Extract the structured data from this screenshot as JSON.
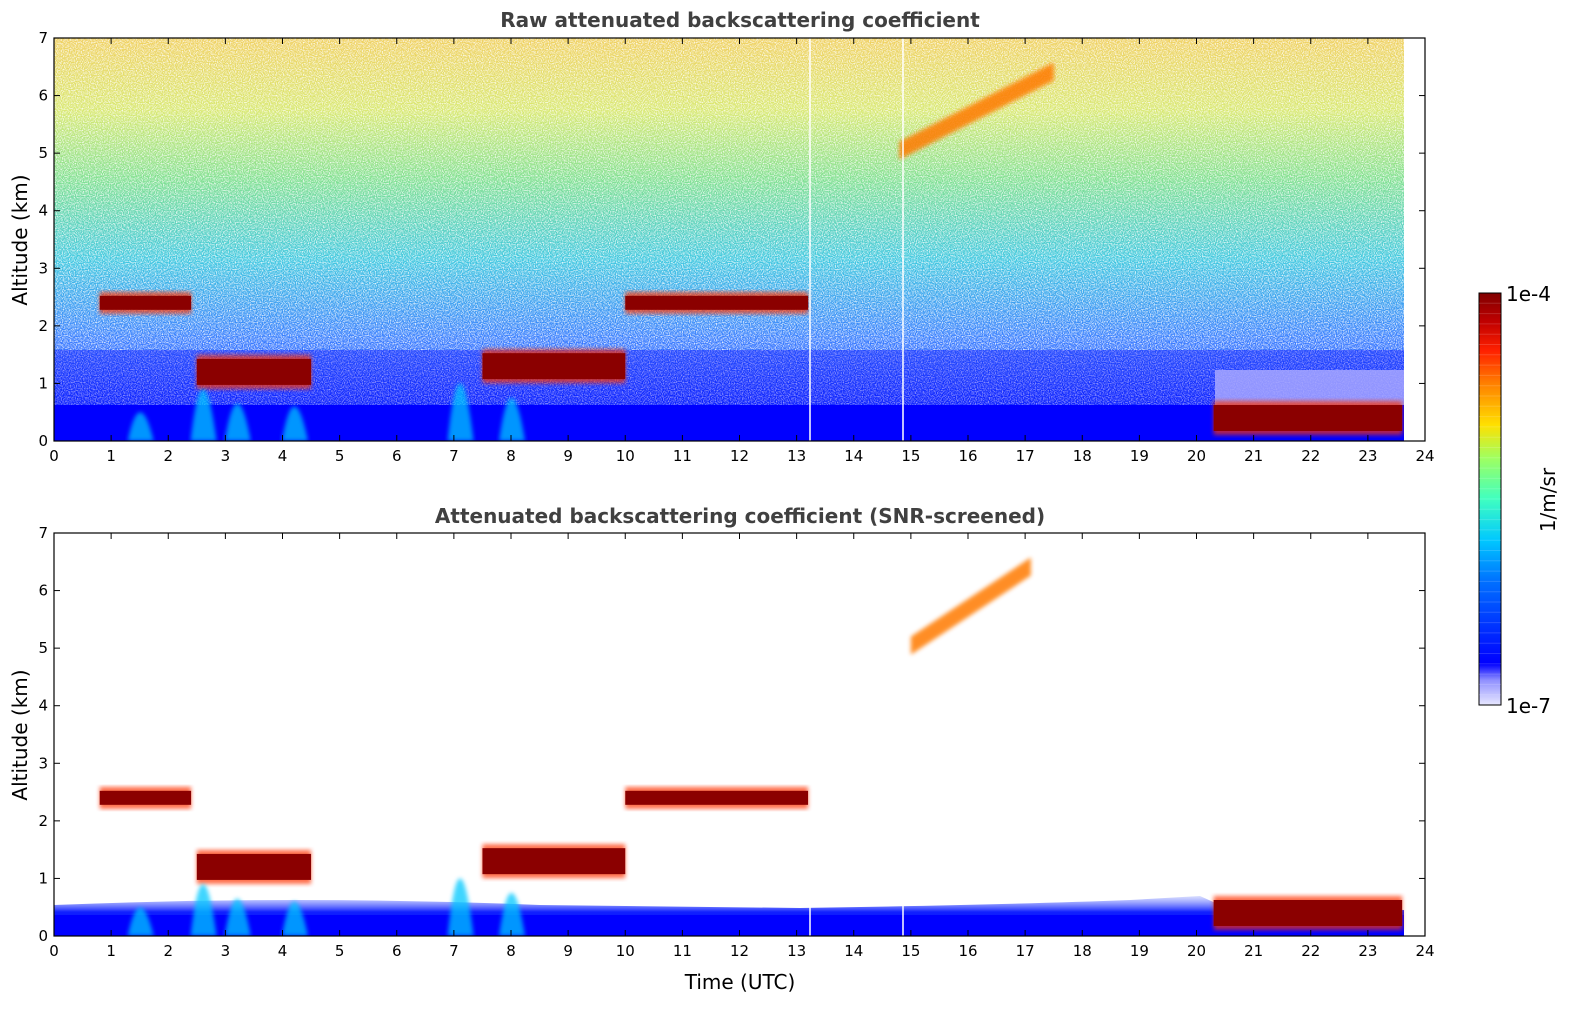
{
  "figure": {
    "colorbar": {
      "top_label": "1e-4",
      "bottom_label": "1e-7",
      "units": "1/m/sr",
      "colormap": [
        "#0000ff",
        "#0070ff",
        "#00c8ff",
        "#40ffc0",
        "#a0ff60",
        "#ffe000",
        "#ff8000",
        "#ff2000",
        "#c00000",
        "#800000"
      ]
    }
  },
  "chart_data": [
    {
      "type": "heatmap",
      "title": "Raw attenuated backscattering coefficient",
      "xlabel": "",
      "ylabel": "Altitude (km)",
      "xlim": [
        0,
        24
      ],
      "ylim": [
        0,
        7
      ],
      "xticks": [
        "0",
        "1",
        "2",
        "3",
        "4",
        "5",
        "6",
        "7",
        "8",
        "9",
        "10",
        "11",
        "12",
        "13",
        "14",
        "15",
        "16",
        "17",
        "18",
        "19",
        "20",
        "21",
        "22",
        "23",
        "24"
      ],
      "yticks": [
        "0",
        "1",
        "2",
        "3",
        "4",
        "5",
        "6",
        "7"
      ],
      "color_scale": "log",
      "color_range": [
        1e-07,
        0.0001
      ],
      "features": [
        {
          "x0": 0.8,
          "x1": 2.4,
          "y": 2.4,
          "value": "1e-4"
        },
        {
          "x0": 2.5,
          "x1": 4.5,
          "y": 1.2,
          "value": "1e-4"
        },
        {
          "x0": 7.5,
          "x1": 10.0,
          "y": 1.3,
          "value": "1e-4"
        },
        {
          "x0": 10.0,
          "x1": 13.2,
          "y": 2.4,
          "value": "1e-4"
        },
        {
          "x0": 20.3,
          "x1": 23.6,
          "y": 0.4,
          "value": "1e-4"
        },
        {
          "x0": 14.8,
          "x1": 17.5,
          "y": 5.8,
          "value": "3e-5"
        }
      ]
    },
    {
      "type": "heatmap",
      "title": "Attenuated backscattering coefficient (SNR-screened)",
      "xlabel": "Time (UTC)",
      "ylabel": "Altitude (km)",
      "xlim": [
        0,
        24
      ],
      "ylim": [
        0,
        7
      ],
      "xticks": [
        "0",
        "1",
        "2",
        "3",
        "4",
        "5",
        "6",
        "7",
        "8",
        "9",
        "10",
        "11",
        "12",
        "13",
        "14",
        "15",
        "16",
        "17",
        "18",
        "19",
        "20",
        "21",
        "22",
        "23",
        "24"
      ],
      "yticks": [
        "0",
        "1",
        "2",
        "3",
        "4",
        "5",
        "6",
        "7"
      ],
      "color_scale": "log",
      "color_range": [
        1e-07,
        0.0001
      ],
      "features": [
        {
          "x0": 0.8,
          "x1": 2.4,
          "y": 2.4,
          "value": "1e-4"
        },
        {
          "x0": 2.5,
          "x1": 4.5,
          "y": 1.2,
          "value": "1e-4"
        },
        {
          "x0": 7.5,
          "x1": 10.0,
          "y": 1.3,
          "value": "1e-4"
        },
        {
          "x0": 10.0,
          "x1": 13.2,
          "y": 2.4,
          "value": "1e-4"
        },
        {
          "x0": 20.3,
          "x1": 23.6,
          "y": 0.4,
          "value": "1e-4"
        },
        {
          "x0": 15.0,
          "x1": 17.1,
          "y": 5.8,
          "value": "3e-5"
        }
      ]
    }
  ]
}
